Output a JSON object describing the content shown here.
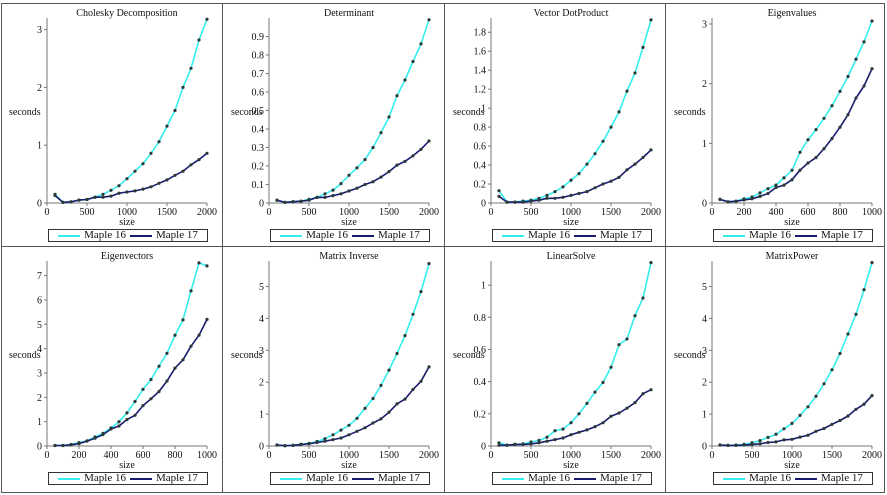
{
  "colors": {
    "maple16": "#33eeee",
    "maple17": "#1a1a6e",
    "marker": "#2a3a3a",
    "axis": "#555555"
  },
  "legend": {
    "maple16": "Maple 16",
    "maple17": "Maple 17"
  },
  "chart_data": [
    {
      "type": "line",
      "title": "Cholesky Decomposition",
      "xlabel": "size",
      "ylabel": "seconds",
      "xlim": [
        0,
        2000
      ],
      "ylim": [
        0,
        3.2
      ],
      "xticks": [
        0,
        500,
        1000,
        1500,
        2000
      ],
      "yticks": [
        0,
        1,
        2,
        3
      ],
      "x": [
        100,
        200,
        300,
        400,
        500,
        600,
        700,
        800,
        900,
        1000,
        1100,
        1200,
        1300,
        1400,
        1500,
        1600,
        1700,
        1800,
        1900,
        2000
      ],
      "series": [
        {
          "name": "Maple 16",
          "values": [
            0.15,
            0.01,
            0.02,
            0.05,
            0.06,
            0.1,
            0.15,
            0.22,
            0.3,
            0.42,
            0.55,
            0.68,
            0.86,
            1.06,
            1.33,
            1.6,
            2.0,
            2.33,
            2.82,
            3.18
          ]
        },
        {
          "name": "Maple 17",
          "values": [
            0.13,
            0.01,
            0.02,
            0.05,
            0.06,
            0.1,
            0.1,
            0.12,
            0.17,
            0.19,
            0.21,
            0.24,
            0.28,
            0.34,
            0.4,
            0.48,
            0.55,
            0.66,
            0.75,
            0.86
          ]
        }
      ],
      "legend": "bottom",
      "grid": false
    },
    {
      "type": "line",
      "title": "Determinant",
      "xlabel": "size",
      "ylabel": "seconds",
      "xlim": [
        0,
        2000
      ],
      "ylim": [
        0,
        1.0
      ],
      "xticks": [
        0,
        500,
        1000,
        1500,
        2000
      ],
      "yticks": [
        0,
        0.1,
        0.2,
        0.3,
        0.4,
        0.5,
        0.6,
        0.7,
        0.8,
        0.9
      ],
      "x": [
        100,
        200,
        300,
        400,
        500,
        600,
        700,
        800,
        900,
        1000,
        1100,
        1200,
        1300,
        1400,
        1500,
        1600,
        1700,
        1800,
        1900,
        2000
      ],
      "series": [
        {
          "name": "Maple 16",
          "values": [
            0.015,
            0.003,
            0.007,
            0.01,
            0.02,
            0.03,
            0.05,
            0.07,
            0.105,
            0.15,
            0.19,
            0.235,
            0.3,
            0.38,
            0.465,
            0.58,
            0.665,
            0.765,
            0.86,
            0.99
          ]
        },
        {
          "name": "Maple 17",
          "values": [
            0.015,
            0.003,
            0.007,
            0.01,
            0.015,
            0.03,
            0.03,
            0.04,
            0.05,
            0.065,
            0.08,
            0.1,
            0.115,
            0.14,
            0.17,
            0.205,
            0.225,
            0.255,
            0.29,
            0.335
          ]
        }
      ],
      "legend": "bottom",
      "grid": false
    },
    {
      "type": "line",
      "title": "Vector DotProduct",
      "xlabel": "size",
      "ylabel": "seconds",
      "xlim": [
        0,
        2000
      ],
      "ylim": [
        0,
        1.95
      ],
      "xticks": [
        0,
        500,
        1000,
        1500,
        2000
      ],
      "yticks": [
        0,
        0.2,
        0.4,
        0.6,
        0.8,
        1,
        1.2,
        1.4,
        1.6,
        1.8
      ],
      "x": [
        100,
        200,
        300,
        400,
        500,
        600,
        700,
        800,
        900,
        1000,
        1100,
        1200,
        1300,
        1400,
        1500,
        1600,
        1700,
        1800,
        1900,
        2000
      ],
      "series": [
        {
          "name": "Maple 16",
          "values": [
            0.13,
            0.01,
            0.01,
            0.02,
            0.03,
            0.05,
            0.08,
            0.12,
            0.17,
            0.24,
            0.31,
            0.41,
            0.52,
            0.65,
            0.8,
            0.96,
            1.18,
            1.37,
            1.64,
            1.93
          ]
        },
        {
          "name": "Maple 17",
          "values": [
            0.07,
            0.01,
            0.01,
            0.01,
            0.02,
            0.03,
            0.05,
            0.05,
            0.06,
            0.08,
            0.1,
            0.12,
            0.16,
            0.2,
            0.23,
            0.27,
            0.35,
            0.41,
            0.48,
            0.56
          ]
        }
      ],
      "legend": "bottom",
      "grid": false
    },
    {
      "type": "line",
      "title": "Eigenvalues",
      "xlabel": "size",
      "ylabel": "seconds",
      "xlim": [
        0,
        1000
      ],
      "ylim": [
        0,
        3.1
      ],
      "xticks": [
        0,
        200,
        400,
        600,
        800,
        1000
      ],
      "yticks": [
        0,
        1,
        2,
        3
      ],
      "x": [
        50,
        100,
        150,
        200,
        250,
        300,
        350,
        400,
        450,
        500,
        550,
        600,
        650,
        700,
        750,
        800,
        850,
        900,
        950,
        1000
      ],
      "series": [
        {
          "name": "Maple 16",
          "values": [
            0.06,
            0.02,
            0.03,
            0.07,
            0.1,
            0.17,
            0.24,
            0.3,
            0.42,
            0.55,
            0.85,
            1.06,
            1.23,
            1.42,
            1.63,
            1.87,
            2.12,
            2.41,
            2.7,
            3.05
          ]
        },
        {
          "name": "Maple 17",
          "values": [
            0.06,
            0.02,
            0.03,
            0.05,
            0.07,
            0.11,
            0.16,
            0.26,
            0.3,
            0.39,
            0.55,
            0.67,
            0.76,
            0.91,
            1.08,
            1.27,
            1.48,
            1.76,
            1.96,
            2.25
          ]
        }
      ],
      "legend": "bottom",
      "grid": false
    },
    {
      "type": "line",
      "title": "Eigenvectors",
      "xlabel": "size",
      "ylabel": "seconds",
      "xlim": [
        0,
        1000
      ],
      "ylim": [
        0,
        7.6
      ],
      "xticks": [
        0,
        200,
        400,
        600,
        800,
        1000
      ],
      "yticks": [
        0,
        1,
        2,
        3,
        4,
        5,
        6,
        7
      ],
      "x": [
        50,
        100,
        150,
        200,
        250,
        300,
        350,
        400,
        450,
        500,
        550,
        600,
        650,
        700,
        750,
        800,
        850,
        900,
        950,
        1000
      ],
      "series": [
        {
          "name": "Maple 16",
          "values": [
            0.02,
            0.02,
            0.06,
            0.14,
            0.21,
            0.37,
            0.52,
            0.74,
            1.0,
            1.36,
            1.83,
            2.33,
            2.73,
            3.28,
            3.81,
            4.55,
            5.18,
            6.37,
            7.52,
            7.4
          ]
        },
        {
          "name": "Maple 17",
          "values": [
            0.02,
            0.02,
            0.05,
            0.1,
            0.2,
            0.32,
            0.47,
            0.7,
            0.82,
            1.09,
            1.26,
            1.66,
            1.94,
            2.24,
            2.67,
            3.2,
            3.54,
            4.1,
            4.55,
            5.2
          ]
        }
      ],
      "legend": "bottom",
      "grid": false
    },
    {
      "type": "line",
      "title": "Matrix Inverse",
      "xlabel": "size",
      "ylabel": "seconds",
      "xlim": [
        0,
        2000
      ],
      "ylim": [
        0,
        5.8
      ],
      "xticks": [
        0,
        500,
        1000,
        1500,
        2000
      ],
      "yticks": [
        0,
        1,
        2,
        3,
        4,
        5
      ],
      "x": [
        100,
        200,
        300,
        400,
        500,
        600,
        700,
        800,
        900,
        1000,
        1100,
        1200,
        1300,
        1400,
        1500,
        1600,
        1700,
        1800,
        1900,
        2000
      ],
      "series": [
        {
          "name": "Maple 16",
          "values": [
            0.03,
            0.01,
            0.02,
            0.05,
            0.08,
            0.14,
            0.23,
            0.35,
            0.5,
            0.65,
            0.87,
            1.18,
            1.49,
            1.9,
            2.38,
            2.9,
            3.46,
            4.13,
            4.84,
            5.72
          ]
        },
        {
          "name": "Maple 17",
          "values": [
            0.03,
            0.01,
            0.02,
            0.05,
            0.07,
            0.11,
            0.15,
            0.2,
            0.25,
            0.35,
            0.46,
            0.57,
            0.72,
            0.85,
            1.06,
            1.32,
            1.47,
            1.77,
            2.03,
            2.48
          ]
        }
      ],
      "legend": "bottom",
      "grid": false
    },
    {
      "type": "line",
      "title": "LinearSolve",
      "xlabel": "size",
      "ylabel": "seconds",
      "xlim": [
        0,
        2000
      ],
      "ylim": [
        0,
        1.15
      ],
      "xticks": [
        0,
        500,
        1000,
        1500,
        2000
      ],
      "yticks": [
        0,
        0.2,
        0.4,
        0.6,
        0.8,
        1
      ],
      "x": [
        100,
        200,
        300,
        400,
        500,
        600,
        700,
        800,
        900,
        1000,
        1100,
        1200,
        1300,
        1400,
        1500,
        1600,
        1700,
        1800,
        1900,
        2000
      ],
      "series": [
        {
          "name": "Maple 16",
          "values": [
            0.02,
            0.005,
            0.01,
            0.013,
            0.025,
            0.035,
            0.055,
            0.095,
            0.105,
            0.145,
            0.2,
            0.265,
            0.335,
            0.395,
            0.49,
            0.63,
            0.665,
            0.81,
            0.92,
            1.14
          ]
        },
        {
          "name": "Maple 17",
          "values": [
            0.005,
            0.005,
            0.01,
            0.01,
            0.013,
            0.02,
            0.03,
            0.04,
            0.05,
            0.07,
            0.085,
            0.1,
            0.12,
            0.145,
            0.185,
            0.205,
            0.235,
            0.27,
            0.325,
            0.35
          ]
        }
      ],
      "legend": "bottom",
      "grid": false
    },
    {
      "type": "line",
      "title": "MatrixPower",
      "xlabel": "size",
      "ylabel": "seconds",
      "xlim": [
        0,
        2000
      ],
      "ylim": [
        0,
        5.8
      ],
      "xticks": [
        0,
        500,
        1000,
        1500,
        2000
      ],
      "yticks": [
        0,
        1,
        2,
        3,
        4,
        5
      ],
      "x": [
        100,
        200,
        300,
        400,
        500,
        600,
        700,
        800,
        900,
        1000,
        1100,
        1200,
        1300,
        1400,
        1500,
        1600,
        1700,
        1800,
        1900,
        2000
      ],
      "series": [
        {
          "name": "Maple 16",
          "values": [
            0.03,
            0.02,
            0.03,
            0.05,
            0.1,
            0.17,
            0.27,
            0.37,
            0.54,
            0.71,
            0.96,
            1.23,
            1.56,
            1.95,
            2.39,
            2.9,
            3.51,
            4.13,
            4.9,
            5.75
          ]
        },
        {
          "name": "Maple 17",
          "values": [
            0.03,
            0.02,
            0.02,
            0.03,
            0.05,
            0.07,
            0.11,
            0.13,
            0.19,
            0.21,
            0.28,
            0.34,
            0.46,
            0.55,
            0.68,
            0.8,
            0.94,
            1.15,
            1.31,
            1.58
          ]
        }
      ],
      "legend": "bottom",
      "grid": false
    }
  ]
}
